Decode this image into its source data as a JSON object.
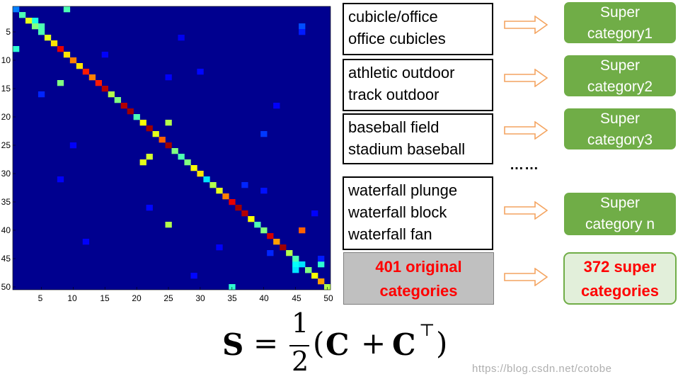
{
  "matrix": {
    "yticks": [
      "5",
      "10",
      "15",
      "20",
      "25",
      "30",
      "35",
      "40",
      "45",
      "50"
    ],
    "xticks": [
      "5",
      "10",
      "15",
      "20",
      "25",
      "30",
      "35",
      "40",
      "45",
      "50"
    ],
    "size": 50,
    "colormap": "jet",
    "background_color": "#00008f",
    "diagonal_values": [
      0.25,
      0.45,
      0.6,
      0.5,
      0.45,
      0.6,
      0.65,
      0.9,
      0.65,
      0.75,
      0.65,
      0.85,
      0.75,
      0.85,
      0.95,
      0.55,
      0.5,
      0.95,
      0.97,
      0.45,
      0.62,
      0.97,
      0.6,
      0.78,
      0.97,
      0.5,
      0.45,
      0.5,
      0.62,
      0.65,
      0.35,
      0.55,
      0.6,
      0.75,
      0.9,
      0.97,
      0.95,
      0.62,
      0.45,
      0.5,
      0.92,
      0.72,
      0.97,
      0.55,
      0.45,
      0.35,
      0.5,
      0.62,
      0.72,
      0.55
    ],
    "off_diagonal": [
      {
        "row": 1,
        "col": 9,
        "value": 0.45
      },
      {
        "row": 3,
        "col": 4,
        "value": 0.4
      },
      {
        "row": 4,
        "col": 5,
        "value": 0.45
      },
      {
        "row": 8,
        "col": 1,
        "value": 0.42
      },
      {
        "row": 14,
        "col": 8,
        "value": 0.5
      },
      {
        "row": 21,
        "col": 25,
        "value": 0.55
      },
      {
        "row": 27,
        "col": 22,
        "value": 0.58
      },
      {
        "row": 28,
        "col": 21,
        "value": 0.6
      },
      {
        "row": 39,
        "col": 25,
        "value": 0.55
      },
      {
        "row": 40,
        "col": 46,
        "value": 0.78
      },
      {
        "row": 46,
        "col": 45,
        "value": 0.38
      },
      {
        "row": 46,
        "col": 49,
        "value": 0.42
      },
      {
        "row": 47,
        "col": 45,
        "value": 0.35
      },
      {
        "row": 47,
        "col": 47,
        "value": 0.45
      },
      {
        "row": 50,
        "col": 35,
        "value": 0.42
      },
      {
        "row": 4,
        "col": 46,
        "value": 0.2
      },
      {
        "row": 5,
        "col": 46,
        "value": 0.15
      },
      {
        "row": 16,
        "col": 5,
        "value": 0.16
      },
      {
        "row": 23,
        "col": 40,
        "value": 0.18
      },
      {
        "row": 32,
        "col": 37,
        "value": 0.16
      },
      {
        "row": 33,
        "col": 40,
        "value": 0.14
      },
      {
        "row": 44,
        "col": 41,
        "value": 0.16
      },
      {
        "row": 45,
        "col": 49,
        "value": 0.15
      },
      {
        "row": 12,
        "col": 30,
        "value": 0.13
      },
      {
        "row": 13,
        "col": 25,
        "value": 0.12
      },
      {
        "row": 25,
        "col": 10,
        "value": 0.12
      },
      {
        "row": 36,
        "col": 22,
        "value": 0.13
      },
      {
        "row": 42,
        "col": 12,
        "value": 0.12
      },
      {
        "row": 48,
        "col": 29,
        "value": 0.13
      },
      {
        "row": 31,
        "col": 8,
        "value": 0.12
      },
      {
        "row": 18,
        "col": 42,
        "value": 0.12
      },
      {
        "row": 9,
        "col": 15,
        "value": 0.12
      },
      {
        "row": 6,
        "col": 27,
        "value": 0.11
      },
      {
        "row": 37,
        "col": 48,
        "value": 0.12
      },
      {
        "row": 43,
        "col": 33,
        "value": 0.12
      }
    ]
  },
  "groups": [
    {
      "lines": [
        "cubicle/office",
        "office cubicles"
      ],
      "super": [
        "Super",
        "category1"
      ]
    },
    {
      "lines": [
        "athletic outdoor",
        "track outdoor"
      ],
      "super": [
        "Super",
        "category2"
      ]
    },
    {
      "lines": [
        "baseball field",
        "stadium baseball"
      ],
      "super": [
        "Super",
        "category3"
      ]
    },
    {
      "lines": [
        "waterfall plunge",
        "waterfall block",
        "waterfall fan"
      ],
      "super": [
        "Super",
        "category n"
      ]
    }
  ],
  "ellipsis": "……",
  "totals": {
    "original": [
      "401 original",
      "categories"
    ],
    "super": [
      "372 super",
      "categories"
    ]
  },
  "formula": {
    "lhs": "S",
    "equals": "=",
    "numerator": "1",
    "denominator": "2",
    "open_paren": "(",
    "c1": "C",
    "plus": "+",
    "c2": "C",
    "transpose": "⊤",
    "close_paren": ")"
  },
  "watermark": "https://blog.csdn.net/cotobe",
  "colors": {
    "arrow": "#f4a460",
    "super_green": "#70ad47",
    "total_green_bg": "#e2efda",
    "total_red": "#ff0000",
    "grey": "#c0c0c0"
  }
}
